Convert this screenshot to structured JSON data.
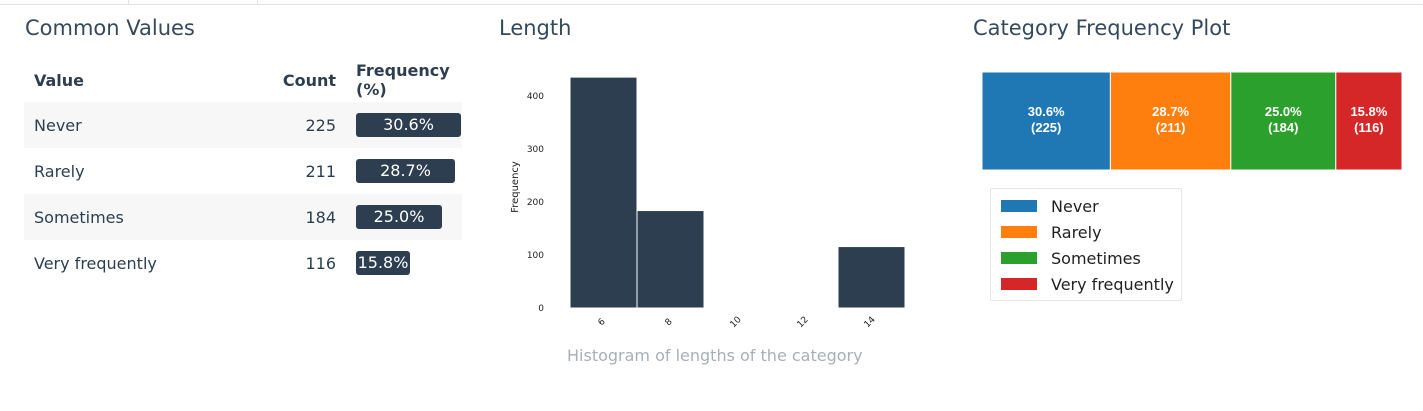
{
  "common_values": {
    "title": "Common Values",
    "headers": {
      "value": "Value",
      "count": "Count",
      "frequency": "Frequency (%)"
    },
    "rows": [
      {
        "value": "Never",
        "count": "225",
        "frequency": "30.6%",
        "pct": 30.6
      },
      {
        "value": "Rarely",
        "count": "211",
        "frequency": "28.7%",
        "pct": 28.7
      },
      {
        "value": "Sometimes",
        "count": "184",
        "frequency": "25.0%",
        "pct": 25.0
      },
      {
        "value": "Very frequently",
        "count": "116",
        "frequency": "15.8%",
        "pct": 15.8
      }
    ]
  },
  "length": {
    "title": "Length",
    "caption": "Histogram of lengths of the category"
  },
  "category_plot": {
    "title": "Category Frequency Plot"
  },
  "chart_data": [
    {
      "type": "bar",
      "bins": [
        [
          5,
          7
        ],
        [
          7,
          9
        ],
        [
          9,
          11
        ],
        [
          11,
          13
        ],
        [
          13,
          15
        ]
      ],
      "values": [
        436,
        184,
        0,
        0,
        116
      ],
      "xticks": [
        "6",
        "8",
        "10",
        "12",
        "14"
      ],
      "yticks": [
        "0",
        "100",
        "200",
        "300",
        "400"
      ],
      "xlim": [
        5,
        15
      ],
      "ylim": [
        0,
        457
      ],
      "xlabel": "",
      "ylabel": "Frequency",
      "grid": false,
      "bar_color": "#2c3e50"
    },
    {
      "type": "bar",
      "stacked": true,
      "orientation": "horizontal",
      "categories": [
        "Never",
        "Rarely",
        "Sometimes",
        "Very frequently"
      ],
      "values": [
        225,
        211,
        184,
        116
      ],
      "labels": [
        [
          "30.6%",
          "(225)"
        ],
        [
          "28.7%",
          "(211)"
        ],
        [
          "25.0%",
          "(184)"
        ],
        [
          "15.8%",
          "(116)"
        ]
      ],
      "colors": [
        "#1f77b4",
        "#ff7f0e",
        "#2ca02c",
        "#d62728"
      ],
      "legend": "bottom-left"
    }
  ]
}
